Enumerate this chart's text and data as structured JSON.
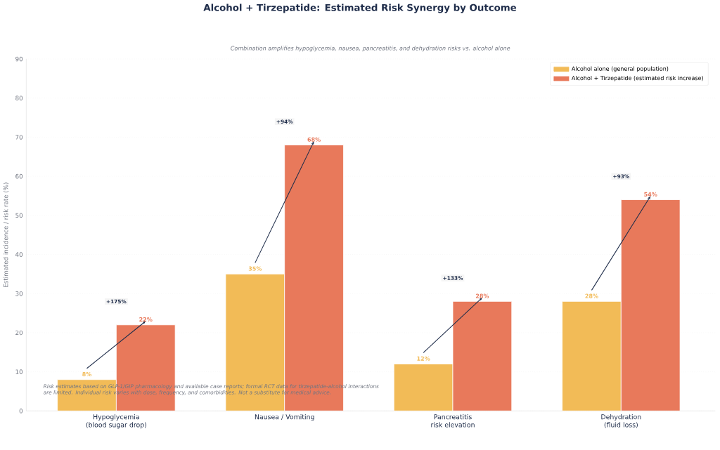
{
  "chart_data": {
    "type": "bar",
    "title": "Alcohol + Tirzepatide: Estimated Risk Synergy by Outcome",
    "subtitle": "Combination amplifies hypoglycemia, nausea, pancreatitis, and dehydration risks vs. alcohol alone",
    "ylabel": "Estimated incidence / risk rate (%)",
    "categories": [
      "Hypoglycemia (blood sugar drop)",
      "Nausea / Vomiting",
      "Pancreatitis risk elevation",
      "Dehydration (fluid loss)"
    ],
    "series": [
      {
        "name": "Alcohol alone (general population)",
        "color": "#f2bb57",
        "values": [
          8,
          35,
          12,
          28
        ],
        "value_labels": [
          "8%",
          "35%",
          "12%",
          "28%"
        ]
      },
      {
        "name": "Alcohol + Tirzepatide (estimated risk increase)",
        "color": "#e8795b",
        "values": [
          22,
          68,
          28,
          54
        ],
        "value_labels": [
          "22%",
          "68%",
          "28%",
          "54%"
        ]
      }
    ],
    "annotations": [
      "+175%",
      "+94%",
      "+133%",
      "+93%",
      "Risk estimates based on GLP-1/GIP pharmacology and available case reports; formal RCT data for tirzepatide-alcohol interactions are limited. Individual risk varies with dose, frequency, and comorbidities. Not a substitute for medical advice."
    ],
    "ylim": [
      0,
      90
    ],
    "yticks": [
      0,
      10,
      20,
      30,
      40,
      50,
      60,
      70,
      80,
      90
    ],
    "grid": "y",
    "legend": "top right"
  }
}
